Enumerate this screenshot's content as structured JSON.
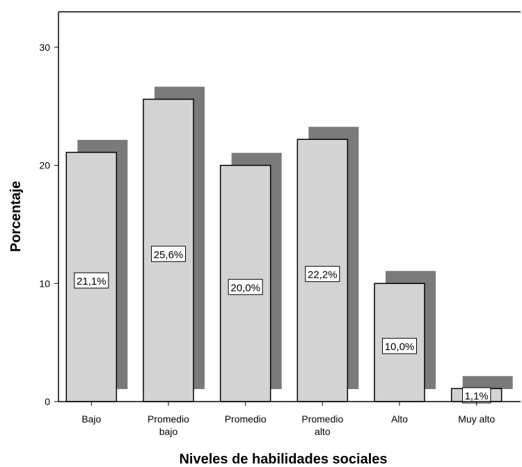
{
  "chart_data": {
    "type": "bar",
    "categories": [
      [
        "Bajo"
      ],
      [
        "Promedio",
        "bajo"
      ],
      [
        "Promedio"
      ],
      [
        "Promedio",
        "alto"
      ],
      [
        "Alto"
      ],
      [
        "Muy alto"
      ]
    ],
    "values": [
      21.1,
      25.6,
      20.0,
      22.2,
      10.0,
      1.1
    ],
    "data_labels": [
      "21,1%",
      "25,6%",
      "20,0%",
      "22,2%",
      "10,0%",
      "1,1%"
    ],
    "xlabel": "Niveles de habilidades sociales",
    "ylabel": "Porcentaje",
    "ylim": [
      0,
      33
    ],
    "yticks": [
      0,
      10,
      20,
      30
    ],
    "grid": false,
    "colors": {
      "bar_fill": "#d3d3d3",
      "bar_stroke": "#000000",
      "shadow": "#7a7a7a",
      "label_box": "#ffffff"
    }
  }
}
